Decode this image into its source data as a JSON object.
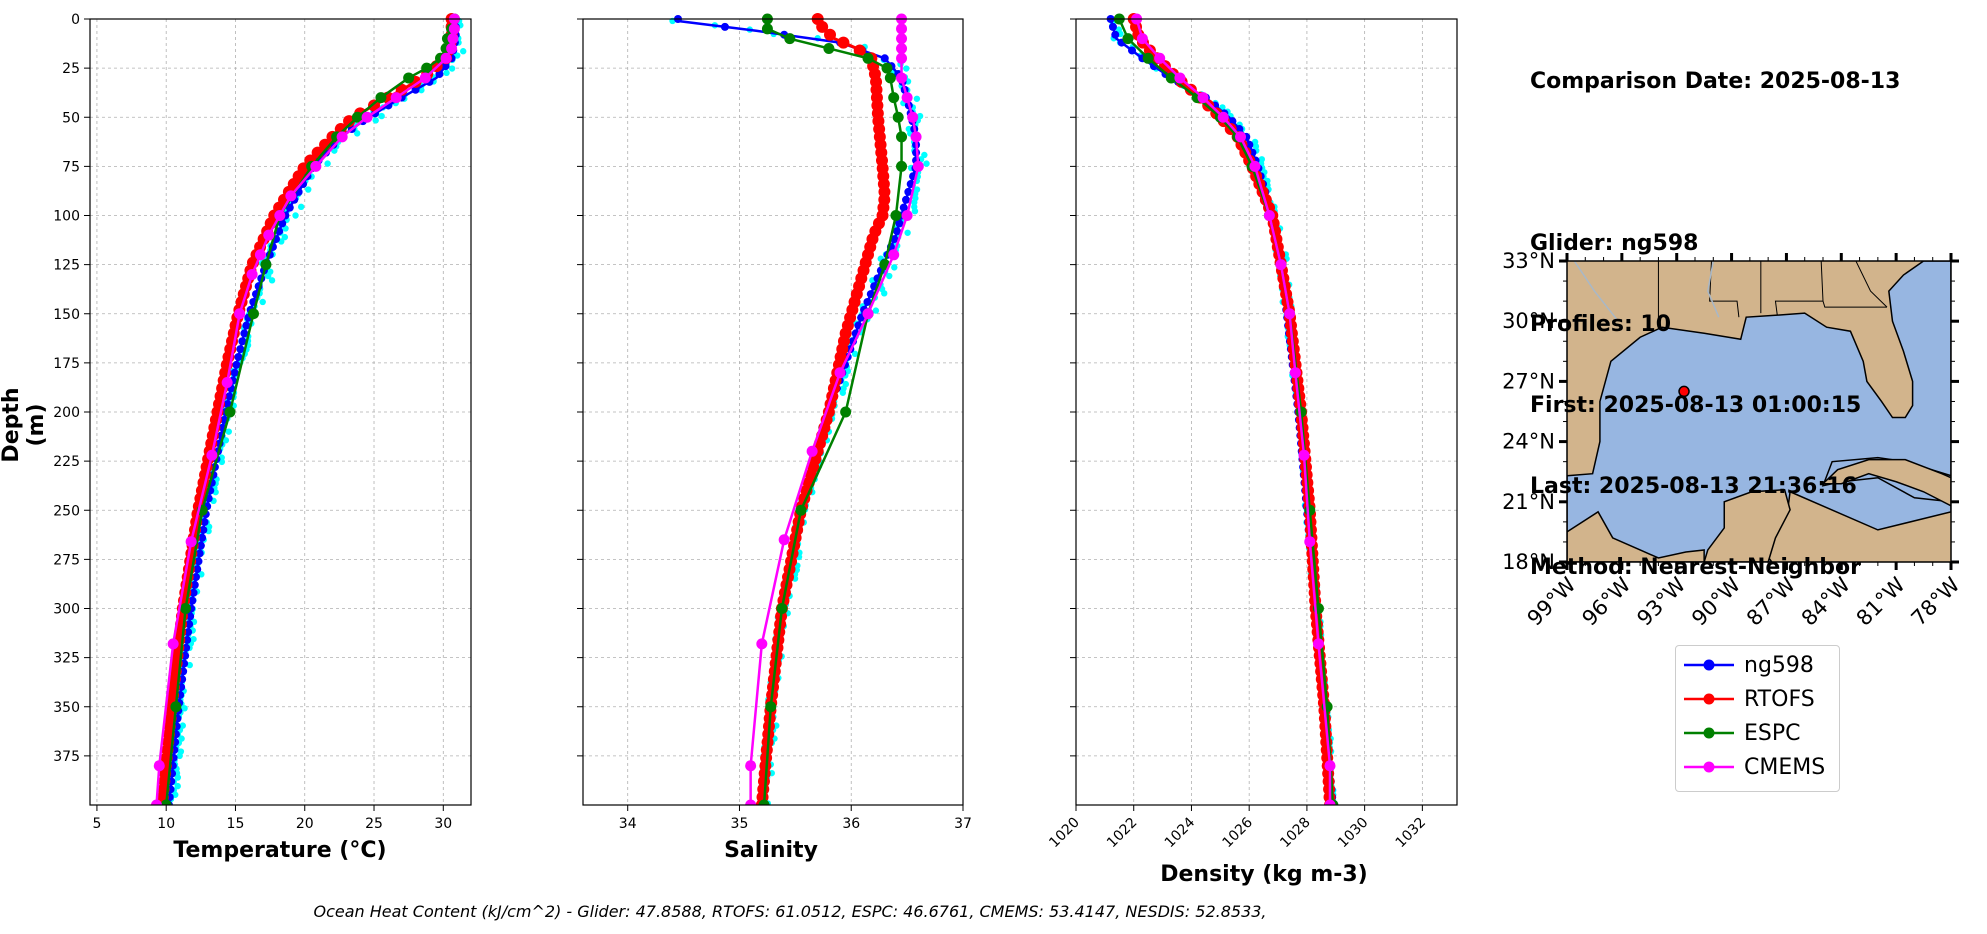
{
  "info": {
    "comparison_date": "Comparison Date: 2025-08-13",
    "glider": "Glider: ng598",
    "profiles": "Profiles: 10",
    "first": "First: 2025-08-13 01:00:15",
    "last": "Last: 2025-08-13 21:36:16",
    "method": "Method: Nearest-Neighbor"
  },
  "footer": "Ocean Heat Content (kJ/cm^2) - Glider: 47.8588,  RTOFS: 61.0512,  ESPC: 46.6761,  CMEMS: 53.4147,  NESDIS: 52.8533,",
  "colors": {
    "ng598": "#0000ff",
    "ng598_raw": "#00ffff",
    "RTOFS": "#ff0000",
    "ESPC": "#008000",
    "CMEMS": "#ff00ff",
    "map_land": "#d2b48c",
    "map_ocean": "#97b6e1"
  },
  "legend": [
    "ng598",
    "RTOFS",
    "ESPC",
    "CMEMS"
  ],
  "map": {
    "lat_ticks": [
      "33°N",
      "30°N",
      "27°N",
      "24°N",
      "21°N",
      "18°N"
    ],
    "lon_ticks": [
      "99°W",
      "96°W",
      "93°W",
      "90°W",
      "87°W",
      "84°W",
      "81°W",
      "78°W"
    ],
    "lon_range": [
      -99,
      -78
    ],
    "lat_range": [
      18,
      33
    ],
    "glider_position": {
      "lon": -92.6,
      "lat": 26.5
    }
  },
  "chart_data": [
    {
      "type": "line",
      "xlabel": "Temperature (°C)",
      "ylabel": "Depth (m)",
      "xlim": [
        4.5,
        32
      ],
      "ylim": [
        400,
        0
      ],
      "xticks": [
        5,
        10,
        15,
        20,
        25,
        30
      ],
      "yticks": [
        0,
        25,
        50,
        75,
        100,
        125,
        150,
        175,
        200,
        225,
        250,
        275,
        300,
        325,
        350,
        375
      ],
      "grid": true,
      "series": [
        {
          "name": "ng598",
          "depth": [
            0,
            10,
            20,
            30,
            40,
            50,
            60,
            75,
            100,
            125,
            150,
            175,
            200,
            250,
            300,
            350,
            400
          ],
          "values": [
            30.9,
            30.9,
            30.6,
            29.5,
            27.0,
            24.6,
            22.6,
            20.6,
            18.6,
            17.2,
            16.0,
            15.1,
            14.3,
            12.9,
            11.8,
            10.9,
            10.2
          ]
        },
        {
          "name": "RTOFS",
          "depth": [
            0,
            10,
            20,
            30,
            40,
            50,
            60,
            75,
            100,
            125,
            150,
            175,
            200,
            250,
            300,
            350,
            400
          ],
          "values": [
            30.6,
            30.6,
            30.2,
            28.5,
            26.0,
            23.5,
            22.0,
            20.0,
            17.8,
            16.2,
            15.2,
            14.4,
            13.7,
            12.3,
            11.2,
            10.4,
            9.7
          ]
        },
        {
          "name": "ESPC",
          "depth": [
            0,
            5,
            10,
            15,
            20,
            25,
            30,
            40,
            50,
            60,
            75,
            100,
            125,
            150,
            200,
            250,
            300,
            350,
            400
          ],
          "values": [
            30.8,
            30.6,
            30.3,
            30.2,
            29.8,
            28.8,
            27.5,
            25.5,
            23.8,
            22.3,
            20.5,
            18.2,
            17.2,
            16.3,
            14.6,
            12.6,
            11.4,
            10.7,
            10.0
          ]
        },
        {
          "name": "CMEMS",
          "depth": [
            0,
            5,
            10,
            15,
            20,
            30,
            40,
            50,
            60,
            75,
            90,
            100,
            110,
            120,
            130,
            150,
            185,
            222,
            266,
            318,
            380,
            400
          ],
          "values": [
            30.8,
            30.8,
            30.7,
            30.6,
            30.2,
            28.7,
            26.6,
            24.5,
            22.7,
            20.8,
            19.0,
            18.2,
            17.4,
            16.8,
            16.2,
            15.3,
            14.4,
            13.3,
            11.8,
            10.5,
            9.5,
            9.3
          ]
        }
      ]
    },
    {
      "type": "line",
      "xlabel": "Salinity",
      "xlim": [
        33.6,
        37.0
      ],
      "ylim": [
        400,
        0
      ],
      "xticks": [
        34,
        35,
        36,
        37
      ],
      "grid": true,
      "series": [
        {
          "name": "ng598",
          "depth": [
            1,
            6,
            12,
            20,
            30,
            45,
            60,
            75,
            90,
            110,
            130,
            150,
            175,
            200,
            250,
            300,
            350,
            400
          ],
          "values": [
            34.45,
            35.15,
            35.9,
            36.3,
            36.45,
            36.52,
            36.58,
            36.58,
            36.5,
            36.4,
            36.25,
            36.1,
            35.95,
            35.8,
            35.55,
            35.38,
            35.28,
            35.2
          ]
        },
        {
          "name": "RTOFS",
          "depth": [
            0,
            5,
            10,
            15,
            20,
            30,
            50,
            75,
            90,
            100,
            110,
            130,
            160,
            200,
            250,
            300,
            350,
            400
          ],
          "values": [
            35.7,
            35.75,
            35.85,
            36.05,
            36.18,
            36.22,
            36.24,
            36.28,
            36.3,
            36.28,
            36.2,
            36.1,
            35.95,
            35.8,
            35.55,
            35.38,
            35.28,
            35.2
          ]
        },
        {
          "name": "ESPC",
          "depth": [
            0,
            5,
            10,
            15,
            20,
            25,
            30,
            40,
            50,
            60,
            75,
            100,
            125,
            150,
            200,
            250,
            300,
            350,
            400
          ],
          "values": [
            35.25,
            35.25,
            35.45,
            35.8,
            36.15,
            36.32,
            36.35,
            36.38,
            36.42,
            36.45,
            36.45,
            36.4,
            36.3,
            36.15,
            35.95,
            35.55,
            35.38,
            35.28,
            35.22
          ]
        },
        {
          "name": "CMEMS",
          "depth": [
            0,
            5,
            10,
            15,
            20,
            30,
            40,
            50,
            60,
            75,
            100,
            120,
            150,
            180,
            220,
            265,
            318,
            380,
            400
          ],
          "values": [
            36.45,
            36.45,
            36.45,
            36.45,
            36.45,
            36.45,
            36.5,
            36.55,
            36.58,
            36.6,
            36.5,
            36.38,
            36.15,
            35.9,
            35.65,
            35.4,
            35.2,
            35.1,
            35.1
          ]
        }
      ]
    },
    {
      "type": "line",
      "xlabel": "Density (kg m-3)",
      "xlim": [
        1020,
        1033.2
      ],
      "ylim": [
        400,
        0
      ],
      "xticks": [
        1020,
        1022,
        1024,
        1026,
        1028,
        1030,
        1032
      ],
      "grid": true,
      "series": [
        {
          "name": "ng598",
          "depth": [
            0,
            10,
            20,
            30,
            40,
            50,
            60,
            75,
            100,
            125,
            150,
            200,
            250,
            300,
            350,
            400
          ],
          "values": [
            1021.2,
            1021.4,
            1022.3,
            1023.3,
            1024.5,
            1025.3,
            1025.9,
            1026.3,
            1026.8,
            1027.1,
            1027.3,
            1027.7,
            1028.0,
            1028.3,
            1028.6,
            1028.9
          ]
        },
        {
          "name": "RTOFS",
          "depth": [
            0,
            10,
            20,
            30,
            40,
            50,
            60,
            75,
            100,
            125,
            150,
            200,
            250,
            300,
            350,
            400
          ],
          "values": [
            1022.0,
            1022.2,
            1022.8,
            1023.5,
            1024.3,
            1025.0,
            1025.6,
            1026.1,
            1026.8,
            1027.1,
            1027.4,
            1027.8,
            1028.1,
            1028.3,
            1028.6,
            1028.8
          ]
        },
        {
          "name": "ESPC",
          "depth": [
            0,
            10,
            20,
            30,
            40,
            50,
            60,
            75,
            100,
            125,
            150,
            200,
            250,
            300,
            350,
            400
          ],
          "values": [
            1021.5,
            1021.8,
            1022.5,
            1023.3,
            1024.2,
            1025.0,
            1025.6,
            1026.1,
            1026.7,
            1027.1,
            1027.4,
            1027.8,
            1028.1,
            1028.4,
            1028.7,
            1028.9
          ]
        },
        {
          "name": "CMEMS",
          "depth": [
            0,
            10,
            20,
            30,
            40,
            50,
            60,
            75,
            100,
            125,
            150,
            180,
            222,
            266,
            318,
            380,
            400
          ],
          "values": [
            1022.1,
            1022.3,
            1022.9,
            1023.6,
            1024.4,
            1025.1,
            1025.7,
            1026.2,
            1026.7,
            1027.1,
            1027.4,
            1027.6,
            1027.9,
            1028.1,
            1028.4,
            1028.8,
            1028.8
          ]
        }
      ]
    }
  ]
}
